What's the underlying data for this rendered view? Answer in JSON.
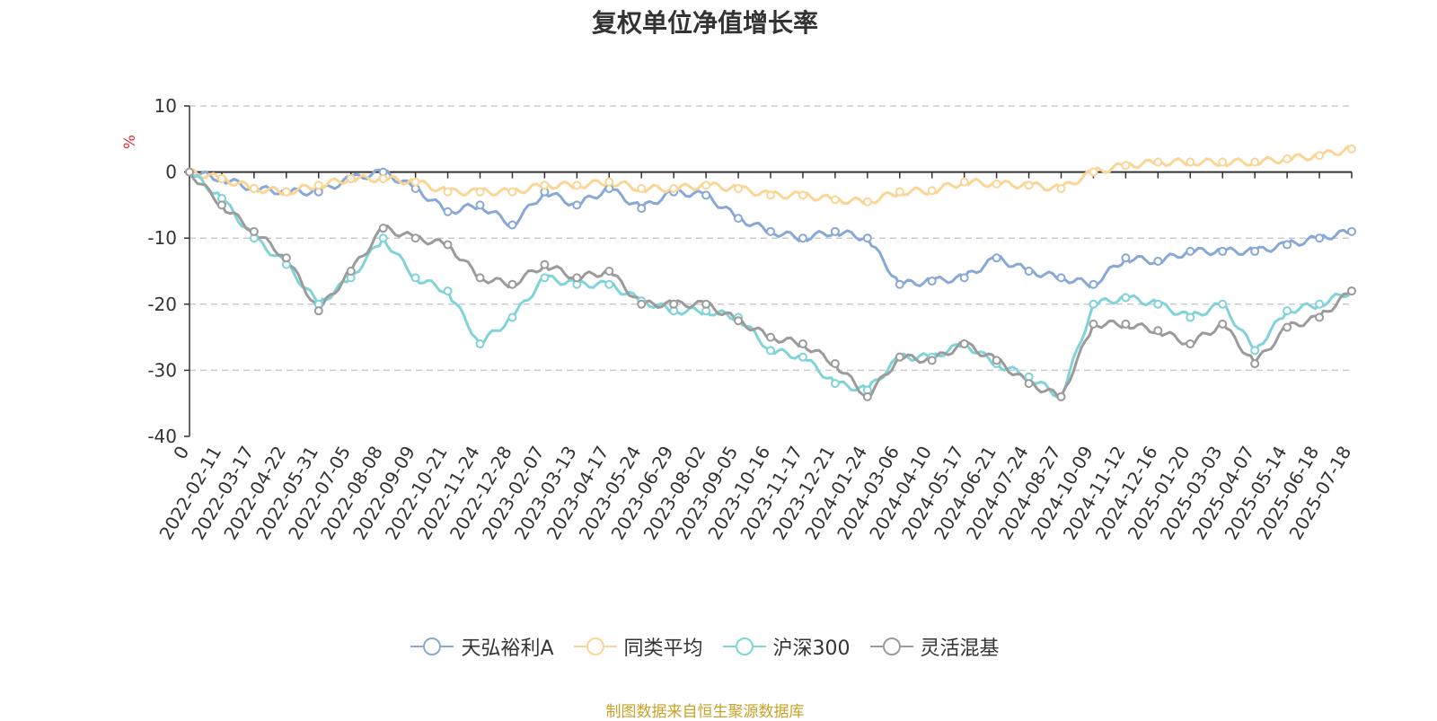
{
  "colors": {
    "series": [
      "#88a8d6",
      "#fad596",
      "#7fd3d9",
      "#9b9b9b"
    ],
    "grid": "#cccccc",
    "axis": "#333333",
    "ylabel": "#e03030",
    "source": "#c9a227"
  },
  "chart_data": {
    "type": "line",
    "title": "复权单位净值增长率",
    "ylabel": "%",
    "ylim": [
      -40,
      10
    ],
    "yticks": [
      10,
      0,
      -10,
      -20,
      -30,
      -40
    ],
    "grid": "y-dashed",
    "legend_position": "bottom",
    "x_tick_labels": [
      "0",
      "2022-02-11",
      "2022-03-17",
      "2022-04-22",
      "2022-05-31",
      "2022-07-05",
      "2022-08-08",
      "2022-09-09",
      "2022-10-21",
      "2022-11-24",
      "2022-12-28",
      "2023-02-07",
      "2023-03-13",
      "2023-04-17",
      "2023-05-24",
      "2023-06-29",
      "2023-08-02",
      "2023-09-05",
      "2023-10-16",
      "2023-11-17",
      "2023-12-21",
      "2024-01-24",
      "2024-03-06",
      "2024-04-10",
      "2024-05-17",
      "2024-06-21",
      "2024-07-24",
      "2024-08-27",
      "2024-10-09",
      "2024-11-12",
      "2024-12-16",
      "2025-01-20",
      "2025-03-03",
      "2025-04-07",
      "2025-05-14",
      "2025-06-18",
      "2025-07-18"
    ],
    "series": [
      {
        "name": "天弘裕利A",
        "values": [
          0,
          -1,
          -2.5,
          -3,
          -3,
          -1,
          0,
          -2.5,
          -6,
          -5,
          -8,
          -3,
          -5,
          -2.5,
          -5.5,
          -3,
          -3.5,
          -7,
          -9,
          -10,
          -9,
          -10,
          -17,
          -16.5,
          -16,
          -13,
          -15,
          -16,
          -17,
          -13,
          -13.5,
          -12,
          -12,
          -12,
          -11,
          -10,
          -9
        ]
      },
      {
        "name": "同类平均",
        "values": [
          0,
          -1,
          -2.5,
          -3,
          -2,
          -1,
          -1,
          -1.5,
          -3,
          -3,
          -3,
          -2,
          -2,
          -1.5,
          -2.5,
          -2.5,
          -2,
          -2.5,
          -3.5,
          -3.5,
          -4.2,
          -4.5,
          -3,
          -2.8,
          -1.5,
          -1.8,
          -2,
          -2.5,
          0,
          1,
          1.5,
          1.5,
          1.5,
          1.5,
          2,
          2.5,
          3.5
        ]
      },
      {
        "name": "沪深300",
        "values": [
          0,
          -4,
          -10,
          -14,
          -20,
          -16,
          -10,
          -16,
          -18,
          -26,
          -22,
          -16,
          -17,
          -17,
          -19.5,
          -21,
          -21,
          -22,
          -27,
          -28,
          -32,
          -33,
          -28,
          -28,
          -26,
          -29,
          -31,
          -34,
          -20,
          -19,
          -20,
          -22,
          -20,
          -27,
          -21,
          -20,
          -18
        ]
      },
      {
        "name": "灵活混基",
        "values": [
          0,
          -5,
          -9,
          -13,
          -21,
          -15,
          -8.5,
          -10,
          -11,
          -16,
          -17,
          -14,
          -16,
          -15,
          -20,
          -20,
          -20,
          -22.5,
          -25,
          -26,
          -29,
          -34,
          -28,
          -28.5,
          -26,
          -28.5,
          -32,
          -34,
          -23,
          -23,
          -24,
          -26,
          -23,
          -29,
          -23.5,
          -22,
          -18
        ]
      }
    ]
  },
  "source_note": "制图数据来自恒生聚源数据库"
}
